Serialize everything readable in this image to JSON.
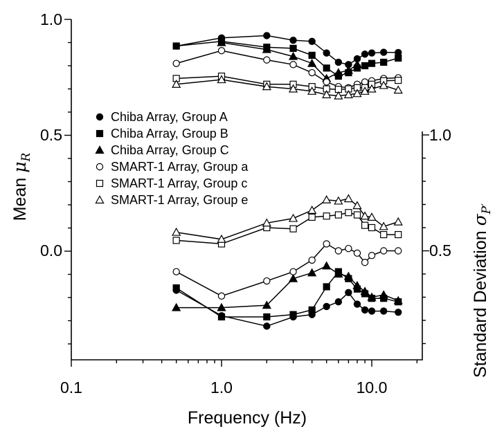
{
  "chart_data": {
    "type": "line",
    "xlabel": "Frequency (Hz)",
    "x_scale": "log",
    "xlim": [
      0.1,
      20
    ],
    "x_ticks": [
      "0.1",
      "1.0",
      "10.0"
    ],
    "ylabel_left": {
      "prefix": "Mean ",
      "symbol": "μ",
      "sub": "R"
    },
    "ylabel_right": {
      "prefix": "Standard Deviation ",
      "symbol": "σ",
      "sub": "P′"
    },
    "left_axis": {
      "ylim": [
        -0.5,
        1.0
      ],
      "ticks": [
        "1.0",
        "0.5",
        "0.0"
      ]
    },
    "right_axis": {
      "ylim": [
        0.0,
        1.0
      ],
      "ticks": [
        "1.0",
        "0.5"
      ]
    },
    "grid": false,
    "legend_position": "center-left",
    "legend": [
      {
        "label": "Chiba Array, Group A",
        "marker": "circle",
        "filled": true
      },
      {
        "label": "Chiba Array, Group B",
        "marker": "square",
        "filled": true
      },
      {
        "label": "Chiba Array, Group C",
        "marker": "triangle",
        "filled": true
      },
      {
        "label": "SMART-1 Array, Group a",
        "marker": "circle",
        "filled": false
      },
      {
        "label": "SMART-1 Array, Group c",
        "marker": "square",
        "filled": false
      },
      {
        "label": "SMART-1 Array, Group e",
        "marker": "triangle",
        "filled": false
      }
    ],
    "mean_series": [
      {
        "legend": 0,
        "x": [
          0.5,
          1.0,
          2.0,
          3.0,
          4.0,
          5.0,
          6.0,
          7.0,
          8.0,
          9.0,
          10.0,
          12.0,
          15.0
        ],
        "y": [
          0.885,
          0.92,
          0.93,
          0.91,
          0.905,
          0.855,
          0.815,
          0.805,
          0.83,
          0.85,
          0.855,
          0.858,
          0.857
        ]
      },
      {
        "legend": 1,
        "x": [
          0.5,
          1.0,
          2.0,
          3.0,
          4.0,
          5.0,
          6.0,
          7.0,
          8.0,
          9.0,
          10.0,
          12.0,
          15.0
        ],
        "y": [
          0.885,
          0.905,
          0.88,
          0.875,
          0.845,
          0.79,
          0.755,
          0.77,
          0.79,
          0.8,
          0.81,
          0.815,
          0.833
        ]
      },
      {
        "legend": 2,
        "x": [
          1.0,
          2.0,
          3.0,
          4.0,
          5.0,
          6.0,
          7.0,
          8.0
        ],
        "y": [
          0.9,
          0.87,
          0.84,
          0.81,
          0.745,
          0.77,
          0.78,
          0.805
        ]
      },
      {
        "legend": 3,
        "x": [
          0.5,
          1.0,
          2.0,
          3.0,
          4.0,
          5.0,
          6.0,
          7.0,
          8.0,
          9.0,
          10.0,
          12.0,
          15.0
        ],
        "y": [
          0.81,
          0.865,
          0.825,
          0.805,
          0.77,
          0.73,
          0.71,
          0.705,
          0.72,
          0.73,
          0.735,
          0.745,
          0.748
        ]
      },
      {
        "legend": 4,
        "x": [
          0.5,
          1.0,
          2.0,
          3.0,
          4.0,
          5.0,
          6.0,
          7.0,
          8.0,
          9.0,
          10.0,
          12.0,
          15.0
        ],
        "y": [
          0.745,
          0.755,
          0.72,
          0.72,
          0.71,
          0.7,
          0.698,
          0.7,
          0.705,
          0.705,
          0.72,
          0.735,
          0.737
        ]
      },
      {
        "legend": 5,
        "x": [
          0.5,
          1.0,
          2.0,
          3.0,
          4.0,
          5.0,
          6.0,
          7.0,
          8.0,
          9.0,
          10.0,
          12.0,
          15.0
        ],
        "y": [
          0.72,
          0.74,
          0.71,
          0.7,
          0.69,
          0.675,
          0.67,
          0.675,
          0.68,
          0.69,
          0.7,
          0.715,
          0.695
        ]
      }
    ],
    "std_series": [
      {
        "legend": 0,
        "x": [
          0.5,
          1.0,
          2.0,
          3.0,
          4.0,
          5.0,
          6.0,
          7.0,
          8.0,
          9.0,
          10.0,
          12.0,
          15.0
        ],
        "y": [
          0.33,
          0.22,
          0.175,
          0.215,
          0.225,
          0.26,
          0.28,
          0.32,
          0.27,
          0.245,
          0.24,
          0.24,
          0.235
        ]
      },
      {
        "legend": 1,
        "x": [
          0.5,
          1.0,
          2.0,
          3.0,
          4.0,
          5.0,
          6.0,
          7.0,
          8.0,
          9.0,
          10.0,
          12.0,
          15.0
        ],
        "y": [
          0.34,
          0.215,
          0.215,
          0.225,
          0.245,
          0.345,
          0.41,
          0.38,
          0.335,
          0.315,
          0.295,
          0.295,
          0.28
        ]
      },
      {
        "legend": 2,
        "x": [
          0.5,
          1.0,
          2.0,
          3.0,
          4.0,
          5.0,
          6.0,
          7.0,
          8.0,
          9.0,
          10.0,
          12.0,
          15.0
        ],
        "y": [
          0.255,
          0.255,
          0.265,
          0.38,
          0.405,
          0.435,
          0.4,
          0.39,
          0.35,
          0.325,
          0.3,
          0.31,
          0.285
        ]
      },
      {
        "legend": 3,
        "x": [
          0.5,
          1.0,
          2.0,
          3.0,
          4.0,
          5.0,
          6.0,
          7.0,
          8.0,
          9.0,
          10.0,
          12.0,
          15.0
        ],
        "y": [
          0.41,
          0.305,
          0.37,
          0.41,
          0.46,
          0.53,
          0.5,
          0.51,
          0.49,
          0.45,
          0.48,
          0.5,
          0.5
        ]
      },
      {
        "legend": 4,
        "x": [
          0.5,
          1.0,
          2.0,
          3.0,
          4.0,
          5.0,
          6.0,
          7.0,
          8.0,
          9.0,
          10.0,
          12.0,
          15.0
        ],
        "y": [
          0.545,
          0.53,
          0.6,
          0.595,
          0.645,
          0.65,
          0.655,
          0.665,
          0.655,
          0.61,
          0.6,
          0.57,
          0.57
        ]
      },
      {
        "legend": 5,
        "x": [
          0.5,
          1.0,
          2.0,
          3.0,
          4.0,
          5.0,
          6.0,
          7.0,
          8.0,
          9.0,
          10.0,
          12.0,
          15.0
        ],
        "y": [
          0.58,
          0.55,
          0.62,
          0.64,
          0.675,
          0.72,
          0.715,
          0.725,
          0.695,
          0.65,
          0.645,
          0.605,
          0.625
        ]
      }
    ]
  }
}
